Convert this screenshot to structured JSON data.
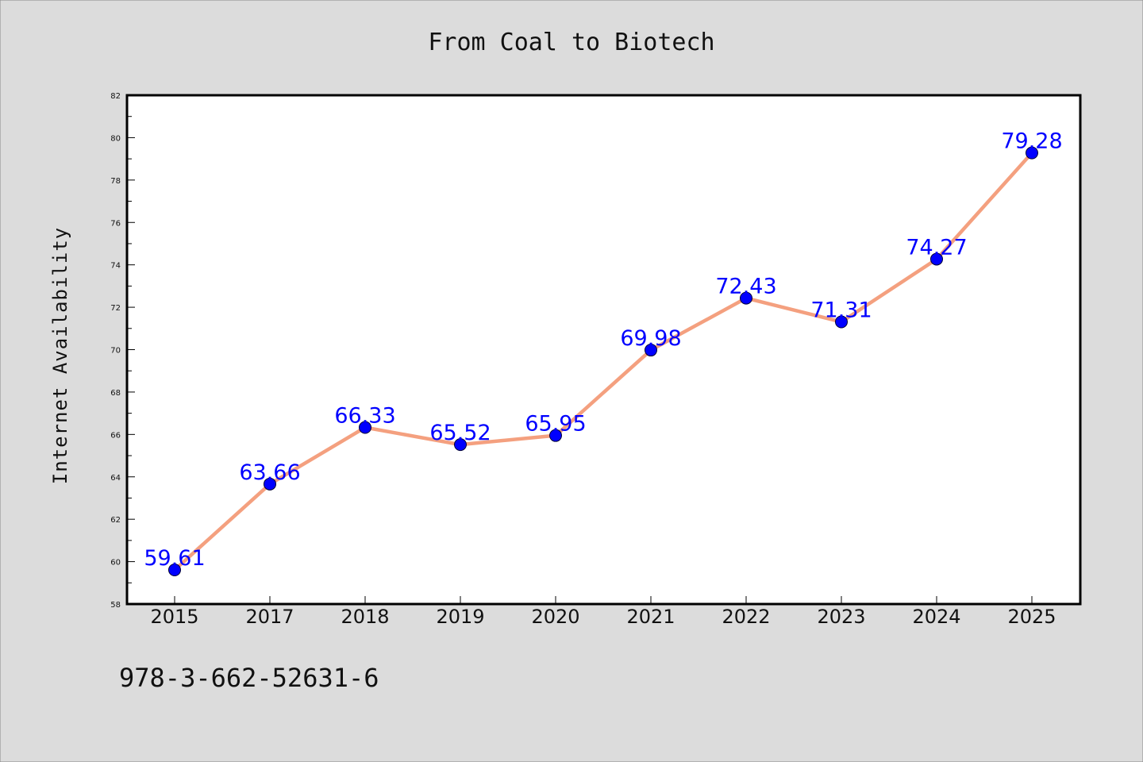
{
  "chart_data": {
    "type": "line",
    "title": "From Coal to Biotech",
    "xlabel": "",
    "ylabel": "Internet Availability",
    "categories": [
      "2015",
      "2017",
      "2018",
      "2019",
      "2020",
      "2021",
      "2022",
      "2023",
      "2024",
      "2025"
    ],
    "series": [
      {
        "values": [
          59.61,
          63.66,
          66.33,
          65.52,
          65.95,
          69.98,
          72.43,
          71.31,
          74.27,
          79.28
        ],
        "data_labels": [
          "59.61",
          "63.66",
          "66.33",
          "65.52",
          "65.95",
          "69.98",
          "72.43",
          "71.31",
          "74.27",
          "79.28"
        ],
        "line_color": "#f4a07f",
        "marker_color": "#0000ff",
        "label_color": "#0000ff"
      }
    ],
    "ylim": [
      58,
      82
    ],
    "yticks": [
      "58",
      "60",
      "62",
      "64",
      "66",
      "68",
      "70",
      "72",
      "74",
      "76",
      "78",
      "80",
      "82"
    ],
    "grid": false,
    "legend": "none"
  },
  "footer": {
    "text": "978-3-662-52631-6"
  },
  "colors": {
    "background": "#dcdcdc",
    "plot_background": "#ffffff",
    "line": "#f4a07f",
    "marker": "#0000ff",
    "data_label": "#0000ff"
  }
}
